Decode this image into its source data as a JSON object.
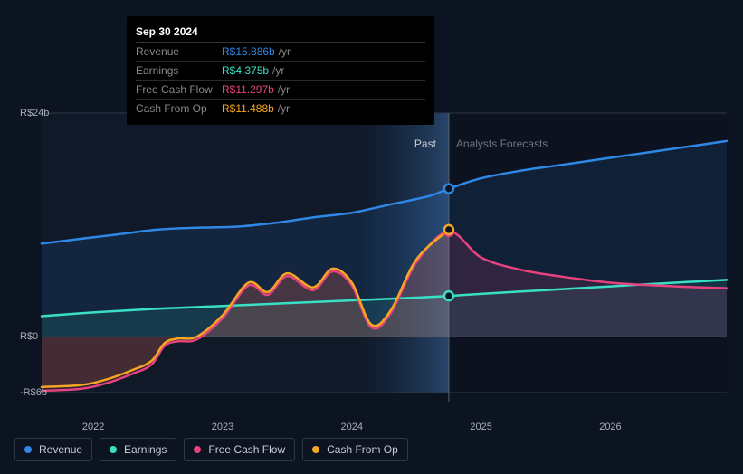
{
  "tooltip": {
    "date": "Sep 30 2024",
    "unit": "/yr",
    "rows": [
      {
        "label": "Revenue",
        "value": "R$15.886b",
        "color": "#2f88e6"
      },
      {
        "label": "Earnings",
        "value": "R$4.375b",
        "color": "#39e0c3"
      },
      {
        "label": "Free Cash Flow",
        "value": "R$11.297b",
        "color": "#e6427d"
      },
      {
        "label": "Cash From Op",
        "value": "R$11.488b",
        "color": "#f5a623"
      }
    ]
  },
  "chart": {
    "type": "line",
    "background": "#0d1421",
    "grid_color": "#2d3846",
    "past_bg": "rgba(18,28,45,0.6)",
    "forecast_bg": "rgba(10,16,28,0.3)",
    "x_range": [
      2021.6,
      2026.9
    ],
    "x_ticks": [
      2022,
      2023,
      2024,
      2025,
      2026
    ],
    "y_range": [
      -6,
      24
    ],
    "y_ticks": [
      {
        "value": 24,
        "label": "R$24b"
      },
      {
        "value": 0,
        "label": "R$0"
      },
      {
        "value": -6,
        "label": "-R$6b"
      }
    ],
    "split_x": 2024.75,
    "labels": {
      "past": "Past",
      "forecast": "Analysts Forecasts"
    },
    "series": [
      {
        "name": "Revenue",
        "color": "#2f88e6",
        "width": 2.5,
        "fill_opacity": 0.12,
        "data": [
          [
            2021.6,
            10.0
          ],
          [
            2021.9,
            10.5
          ],
          [
            2022.2,
            11.0
          ],
          [
            2022.5,
            11.5
          ],
          [
            2022.8,
            11.7
          ],
          [
            2023.1,
            11.8
          ],
          [
            2023.4,
            12.2
          ],
          [
            2023.7,
            12.8
          ],
          [
            2024.0,
            13.3
          ],
          [
            2024.3,
            14.2
          ],
          [
            2024.6,
            15.1
          ],
          [
            2024.75,
            15.886
          ],
          [
            2025.0,
            17.0
          ],
          [
            2025.3,
            17.8
          ],
          [
            2025.6,
            18.4
          ],
          [
            2025.9,
            19.0
          ],
          [
            2026.2,
            19.6
          ],
          [
            2026.5,
            20.2
          ],
          [
            2026.9,
            21.0
          ]
        ],
        "marker_at": [
          2024.75,
          15.886
        ]
      },
      {
        "name": "Earnings",
        "color": "#39e0c3",
        "width": 2.5,
        "fill_opacity": 0.1,
        "data": [
          [
            2021.6,
            2.2
          ],
          [
            2022.0,
            2.6
          ],
          [
            2022.5,
            3.0
          ],
          [
            2023.0,
            3.3
          ],
          [
            2023.5,
            3.6
          ],
          [
            2024.0,
            3.9
          ],
          [
            2024.5,
            4.2
          ],
          [
            2024.75,
            4.375
          ],
          [
            2025.0,
            4.6
          ],
          [
            2025.5,
            5.0
          ],
          [
            2026.0,
            5.4
          ],
          [
            2026.5,
            5.8
          ],
          [
            2026.9,
            6.1
          ]
        ],
        "marker_at": [
          2024.75,
          4.375
        ]
      },
      {
        "name": "Free Cash Flow",
        "color": "#e6427d",
        "width": 2.5,
        "fill_opacity": 0.15,
        "data": [
          [
            2021.6,
            -5.8
          ],
          [
            2021.9,
            -5.6
          ],
          [
            2022.1,
            -5.0
          ],
          [
            2022.3,
            -4.0
          ],
          [
            2022.45,
            -3.0
          ],
          [
            2022.55,
            -1.0
          ],
          [
            2022.65,
            -0.5
          ],
          [
            2022.8,
            -0.3
          ],
          [
            2023.0,
            2.0
          ],
          [
            2023.2,
            5.5
          ],
          [
            2023.35,
            4.5
          ],
          [
            2023.5,
            6.5
          ],
          [
            2023.7,
            5.0
          ],
          [
            2023.85,
            7.0
          ],
          [
            2024.0,
            5.5
          ],
          [
            2024.15,
            1.0
          ],
          [
            2024.3,
            2.5
          ],
          [
            2024.5,
            8.0
          ],
          [
            2024.75,
            11.297
          ],
          [
            2025.0,
            8.5
          ],
          [
            2025.3,
            7.2
          ],
          [
            2025.6,
            6.5
          ],
          [
            2026.0,
            5.8
          ],
          [
            2026.5,
            5.4
          ],
          [
            2026.9,
            5.2
          ]
        ],
        "marker_at": [
          2024.75,
          11.297
        ]
      },
      {
        "name": "Cash From Op",
        "color": "#f5a623",
        "width": 2.5,
        "fill_opacity": 0.1,
        "data": [
          [
            2021.6,
            -5.4
          ],
          [
            2021.9,
            -5.2
          ],
          [
            2022.1,
            -4.6
          ],
          [
            2022.3,
            -3.6
          ],
          [
            2022.45,
            -2.6
          ],
          [
            2022.55,
            -0.7
          ],
          [
            2022.65,
            -0.2
          ],
          [
            2022.8,
            0.0
          ],
          [
            2023.0,
            2.3
          ],
          [
            2023.2,
            5.8
          ],
          [
            2023.35,
            4.8
          ],
          [
            2023.5,
            6.8
          ],
          [
            2023.7,
            5.3
          ],
          [
            2023.85,
            7.3
          ],
          [
            2024.0,
            5.8
          ],
          [
            2024.15,
            1.3
          ],
          [
            2024.3,
            2.8
          ],
          [
            2024.5,
            8.3
          ],
          [
            2024.75,
            11.488
          ]
        ],
        "marker_at": [
          2024.75,
          11.488
        ]
      }
    ]
  },
  "legend": [
    {
      "label": "Revenue",
      "color": "#2f88e6"
    },
    {
      "label": "Earnings",
      "color": "#39e0c3"
    },
    {
      "label": "Free Cash Flow",
      "color": "#e6427d"
    },
    {
      "label": "Cash From Op",
      "color": "#f5a623"
    }
  ]
}
